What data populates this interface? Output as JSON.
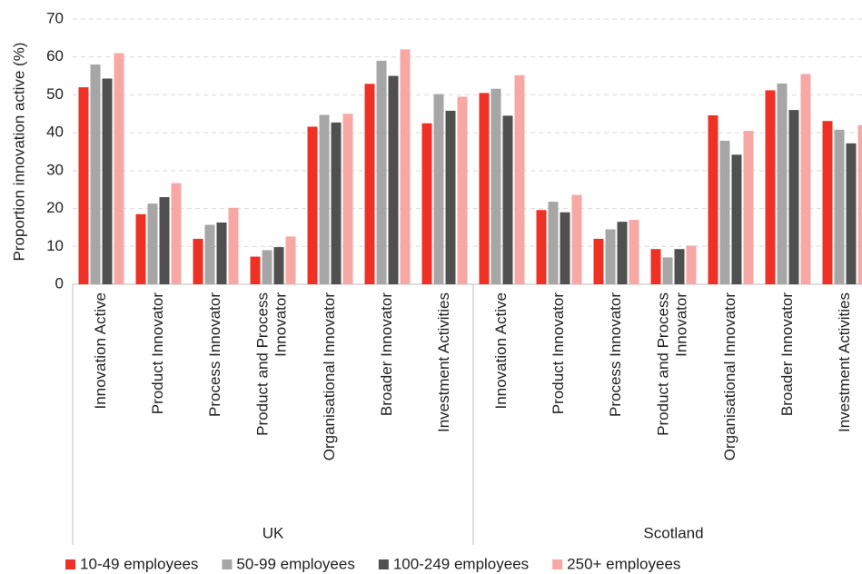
{
  "chart_data": {
    "type": "bar",
    "y_label": "Proportion innovation active (%)",
    "groups": [
      "UK",
      "Scotland"
    ],
    "categories": [
      "Innovation Active",
      "Product Innovator",
      "Process Innovator",
      "Product and Process Innovator",
      "Organisational Innovator",
      "Broader Innovator",
      "Investment Activities",
      "Innovation Active",
      "Product Innovator",
      "Process Innovator",
      "Product and Process Innovator",
      "Organisational Innovator",
      "Broader Innovator",
      "Investment Activities"
    ],
    "series": [
      {
        "name": "10-49 employees",
        "color": "#ee3124",
        "values": [
          52,
          18.5,
          12,
          7.3,
          41.6,
          52.9,
          42.5,
          50.5,
          19.6,
          12,
          9.3,
          44.6,
          51.2,
          43.1
        ]
      },
      {
        "name": "50-99 employees",
        "color": "#a6a6a6",
        "values": [
          58,
          21.3,
          15.7,
          9,
          44.7,
          59,
          50.2,
          51.6,
          21.8,
          14.5,
          7.1,
          37.9,
          53,
          40.8
        ]
      },
      {
        "name": "100-249 employees",
        "color": "#505050",
        "values": [
          54.3,
          23,
          16.3,
          9.8,
          42.7,
          55,
          45.8,
          44.5,
          19,
          16.5,
          9.3,
          34.2,
          46,
          37.2
        ]
      },
      {
        "name": "250+ employees",
        "color": "#f7a8a5",
        "values": [
          61,
          26.7,
          20.2,
          12.6,
          45,
          62,
          49.5,
          55.2,
          23.6,
          17,
          10.2,
          40.5,
          55.5,
          42
        ]
      }
    ],
    "ylim": [
      0,
      70
    ],
    "yticks": [
      0,
      10,
      20,
      30,
      40,
      50,
      60,
      70
    ],
    "grid": true,
    "legend": "bottom"
  }
}
